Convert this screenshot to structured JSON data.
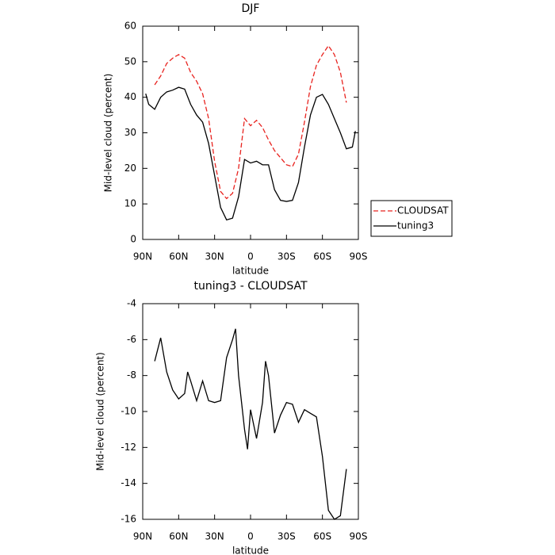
{
  "chart_data": [
    {
      "type": "line",
      "title": "DJF",
      "xlabel": "latitude",
      "ylabel": "Mid-level cloud (percent)",
      "x": [
        87.5,
        85,
        80,
        75,
        70,
        65,
        60,
        55,
        50,
        45,
        40,
        35,
        30,
        25,
        20,
        15,
        10,
        5,
        0,
        -5,
        -10,
        -15,
        -20,
        -25,
        -30,
        -35,
        -40,
        -45,
        -50,
        -55,
        -60,
        -65,
        -70,
        -75,
        -80,
        -85,
        -87.5
      ],
      "series": [
        {
          "name": "CLOUDSAT",
          "color": "#e8231f",
          "dashed": true,
          "values": [
            null,
            null,
            43.5,
            46,
            49.5,
            51,
            52,
            51,
            47,
            44.5,
            41,
            34,
            22,
            13.5,
            11.5,
            13,
            20,
            34,
            32,
            33.5,
            31.5,
            28,
            25,
            23,
            21,
            20.5,
            24,
            33,
            43,
            49,
            52,
            54.5,
            52,
            47,
            38.5,
            null,
            null
          ]
        },
        {
          "name": "tuning3",
          "color": "#000000",
          "dashed": false,
          "values": [
            41,
            38,
            36.6,
            40,
            41.5,
            42,
            42.8,
            42.3,
            38,
            35,
            33,
            27,
            18,
            9,
            5.5,
            6,
            12,
            22.5,
            21.5,
            22,
            21,
            21,
            14,
            11,
            10.7,
            11,
            16,
            26,
            35,
            40,
            40.8,
            38,
            34,
            30,
            25.5,
            26,
            30.5
          ]
        }
      ],
      "xlim": [
        90,
        -90
      ],
      "xticks": [
        {
          "value": 90,
          "label": "90N"
        },
        {
          "value": 60,
          "label": "60N"
        },
        {
          "value": 30,
          "label": "30N"
        },
        0,
        {
          "value": -30,
          "label": "30S"
        },
        {
          "value": -60,
          "label": "60S"
        },
        {
          "value": -90,
          "label": "90S"
        }
      ],
      "ylim": [
        0,
        60
      ],
      "yticks": [
        0,
        10,
        20,
        30,
        40,
        50,
        60
      ],
      "legend": "right"
    },
    {
      "type": "line",
      "title": "tuning3 - CLOUDSAT",
      "xlabel": "latitude",
      "ylabel": "Mid-level cloud (percent)",
      "x": [
        80,
        75,
        70,
        65,
        60,
        55,
        52.5,
        50,
        45,
        40,
        35,
        30,
        25,
        20,
        15,
        12.5,
        10,
        5,
        2.5,
        0,
        -5,
        -10,
        -12.5,
        -15,
        -20,
        -25,
        -30,
        -35,
        -40,
        -45,
        -50,
        -55,
        -60,
        -65,
        -70,
        -75,
        -80
      ],
      "color": "#000000",
      "values": [
        -7.2,
        -5.9,
        -7.8,
        -8.8,
        -9.3,
        -9.0,
        -7.8,
        -8.3,
        -9.4,
        -8.3,
        -9.4,
        -9.5,
        -9.4,
        -7.0,
        -6.0,
        -5.4,
        -8.0,
        -11.0,
        -12.1,
        -9.9,
        -11.5,
        -9.5,
        -7.2,
        -8.0,
        -11.2,
        -10.2,
        -9.5,
        -9.6,
        -10.6,
        -9.9,
        -10.1,
        -10.3,
        -12.5,
        -15.5,
        -16,
        -15.8,
        -13.2
      ],
      "xlim": [
        90,
        -90
      ],
      "xticks": [
        {
          "value": 90,
          "label": "90N"
        },
        {
          "value": 60,
          "label": "60N"
        },
        {
          "value": 30,
          "label": "30N"
        },
        0,
        {
          "value": -30,
          "label": "30S"
        },
        {
          "value": -60,
          "label": "60S"
        },
        {
          "value": -90,
          "label": "90S"
        }
      ],
      "ylim": [
        -16,
        -4
      ],
      "yticks": [
        -4,
        -6,
        -8,
        -10,
        -12,
        -14,
        -16
      ]
    }
  ]
}
